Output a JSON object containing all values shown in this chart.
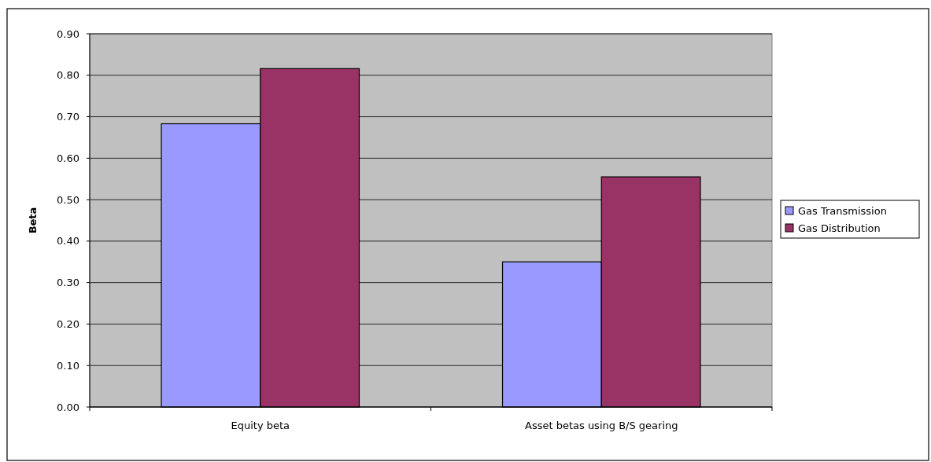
{
  "chart_data": {
    "type": "bar",
    "categories": [
      "Equity beta",
      "Asset betas using B/S gearing"
    ],
    "ylabel": "Beta",
    "series": [
      {
        "name": "Gas Transmission",
        "color": "#9999ff",
        "values": [
          0.683,
          0.35
        ]
      },
      {
        "name": "Gas Distribution",
        "color": "#993366",
        "values": [
          0.816,
          0.555
        ]
      }
    ],
    "ylim": [
      0,
      0.9
    ],
    "yticks": [
      {
        "value": 0,
        "label": "0.00"
      },
      {
        "value": 0.1,
        "label": "0.10"
      },
      {
        "value": 0.2,
        "label": "0.20"
      },
      {
        "value": 0.3,
        "label": "0.30"
      },
      {
        "value": 0.4,
        "label": "0.40"
      },
      {
        "value": 0.5,
        "label": "0.50"
      },
      {
        "value": 0.6,
        "label": "0.60"
      },
      {
        "value": 0.7,
        "label": "0.70"
      },
      {
        "value": 0.8,
        "label": "0.80"
      },
      {
        "value": 0.9,
        "label": "0.90"
      }
    ],
    "grid": "y",
    "legend": "right"
  }
}
